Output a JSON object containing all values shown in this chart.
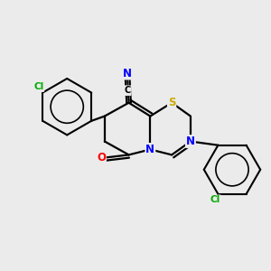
{
  "background_color": "#ebebeb",
  "bond_color": "#000000",
  "atom_colors": {
    "N": "#0000ff",
    "O": "#ff0000",
    "S": "#ccaa00",
    "Cl": "#00aa00"
  },
  "figsize": [
    3.0,
    3.0
  ],
  "dpi": 100
}
